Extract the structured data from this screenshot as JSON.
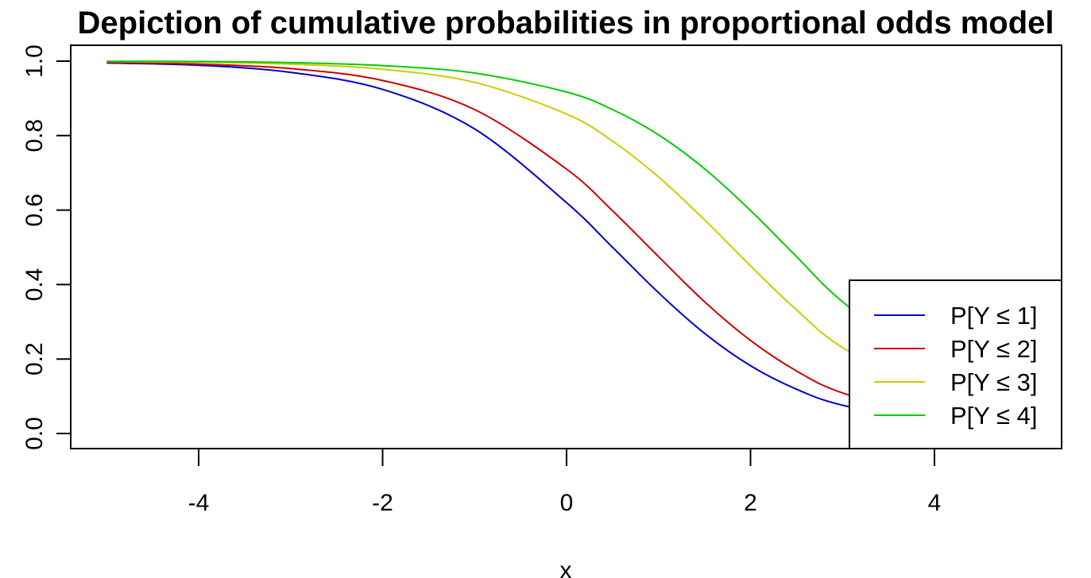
{
  "chart_data": {
    "type": "line",
    "title": "Depiction of cumulative probabilities in proportional odds model",
    "xlabel": "x",
    "ylabel": "",
    "xlim": [
      -5,
      5
    ],
    "ylim": [
      0,
      1
    ],
    "x_ticks": [
      -4,
      -2,
      0,
      2,
      4
    ],
    "x_tick_labels": [
      "-4",
      "-2",
      "0",
      "2",
      "4"
    ],
    "y_ticks": [
      0,
      0.2,
      0.4,
      0.6,
      0.8,
      1
    ],
    "y_tick_labels": [
      "0.0",
      "0.2",
      "0.4",
      "0.6",
      "0.8",
      "1.0"
    ],
    "grid": false,
    "legend_position": "bottom-right",
    "x": [
      -5,
      -4,
      -3,
      -2,
      -1,
      0,
      0.5,
      1,
      1.5,
      2,
      2.5,
      3,
      4,
      5
    ],
    "series": [
      {
        "name": "P[Y ≤ 1]",
        "color": "#0000cc",
        "values": [
          0.995,
          0.989,
          0.97,
          0.924,
          0.818,
          0.62,
          0.5,
          0.378,
          0.269,
          0.182,
          0.119,
          0.076,
          0.029,
          0.011
        ]
      },
      {
        "name": "P[Y ≤ 2]",
        "color": "#cc0000",
        "values": [
          0.997,
          0.992,
          0.98,
          0.948,
          0.87,
          0.71,
          0.598,
          0.475,
          0.354,
          0.25,
          0.168,
          0.109,
          0.043,
          0.016
        ]
      },
      {
        "name": "P[Y ≤ 3]",
        "color": "#cccc00",
        "values": [
          0.999,
          0.997,
          0.992,
          0.978,
          0.943,
          0.858,
          0.785,
          0.689,
          0.574,
          0.45,
          0.332,
          0.231,
          0.1,
          0.039
        ]
      },
      {
        "name": "P[Y ≤ 4]",
        "color": "#00cc00",
        "values": [
          0.9995,
          0.999,
          0.996,
          0.988,
          0.968,
          0.917,
          0.87,
          0.802,
          0.711,
          0.599,
          0.475,
          0.354,
          0.168,
          0.069
        ]
      }
    ]
  }
}
